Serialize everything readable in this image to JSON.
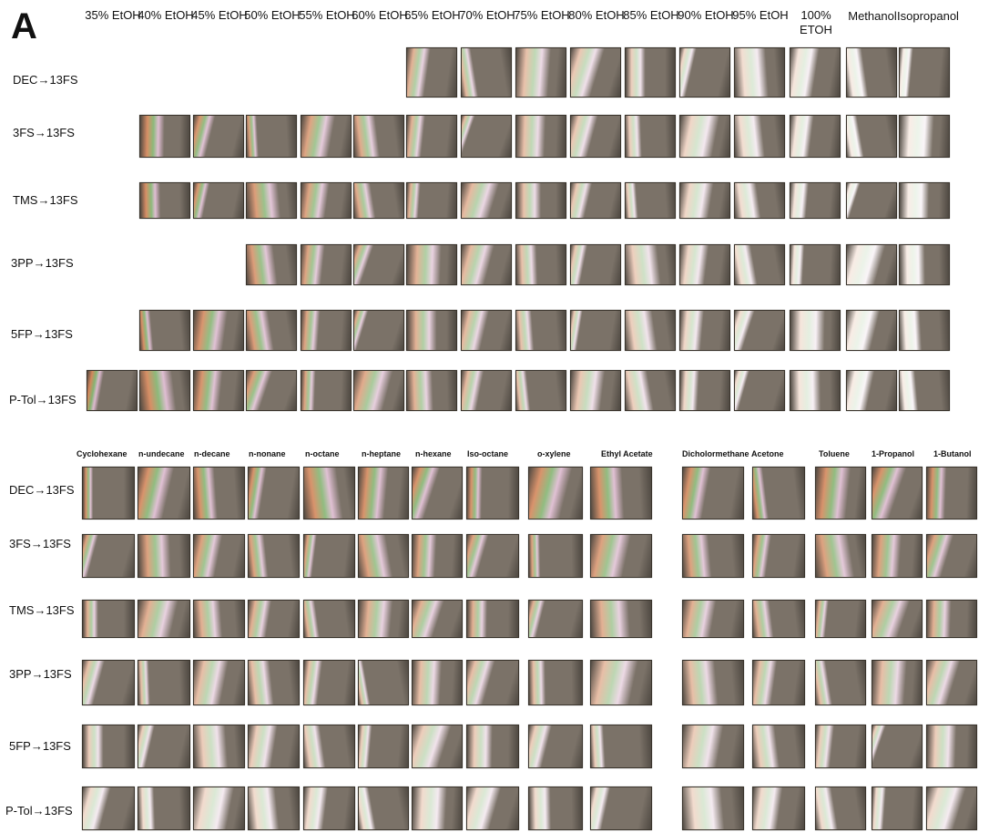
{
  "panel_letter": "A",
  "top": {
    "columns": [
      "35% EtOH",
      "40% EtOH",
      "45% EtOH",
      "50% EtOH",
      "55% EtOH",
      "60% EtOH",
      "65% EtOH",
      "70% EtOH",
      "75% EtOH",
      "80% EtOH",
      "85% EtOH",
      "90% EtOH",
      "95% EtOH",
      "100% ETOH",
      "Methanol",
      "Isopropanol"
    ],
    "rows": [
      {
        "label": "DEC→13FS",
        "first_col": 6,
        "last_col": 15
      },
      {
        "label": "3FS→13FS",
        "first_col": 1,
        "last_col": 15
      },
      {
        "label": "TMS→13FS",
        "first_col": 1,
        "last_col": 15
      },
      {
        "label": "3PP→13FS",
        "first_col": 3,
        "last_col": 15
      },
      {
        "label": "5FP→13FS",
        "first_col": 1,
        "last_col": 15
      },
      {
        "label": "P-Tol→13FS",
        "first_col": 0,
        "last_col": 15
      }
    ]
  },
  "bottom": {
    "columns": [
      "Cyclohexane",
      "n-undecane",
      "n-decane",
      "n-nonane",
      "n-octane",
      "n-heptane",
      "n-hexane",
      "Iso-octane",
      "o-xylene",
      "Ethyl Acetate",
      "Dicholormethane",
      "Acetone",
      "Toluene",
      "1-Propanol",
      "1-Butanol"
    ],
    "rows": [
      {
        "label": "DEC→13FS"
      },
      {
        "label": "3FS→13FS"
      },
      {
        "label": "TMS→13FS"
      },
      {
        "label": "3PP→13FS"
      },
      {
        "label": "5FP→13FS"
      },
      {
        "label": "P-Tol→13FS"
      }
    ]
  },
  "colors": {
    "film_base": "#7b7268",
    "film_dark": "#4e4841",
    "iridescent_green": "#6fa85a",
    "iridescent_orange": "#d07a4a",
    "iridescent_pink": "#c78bb0",
    "background": "#ffffff"
  }
}
